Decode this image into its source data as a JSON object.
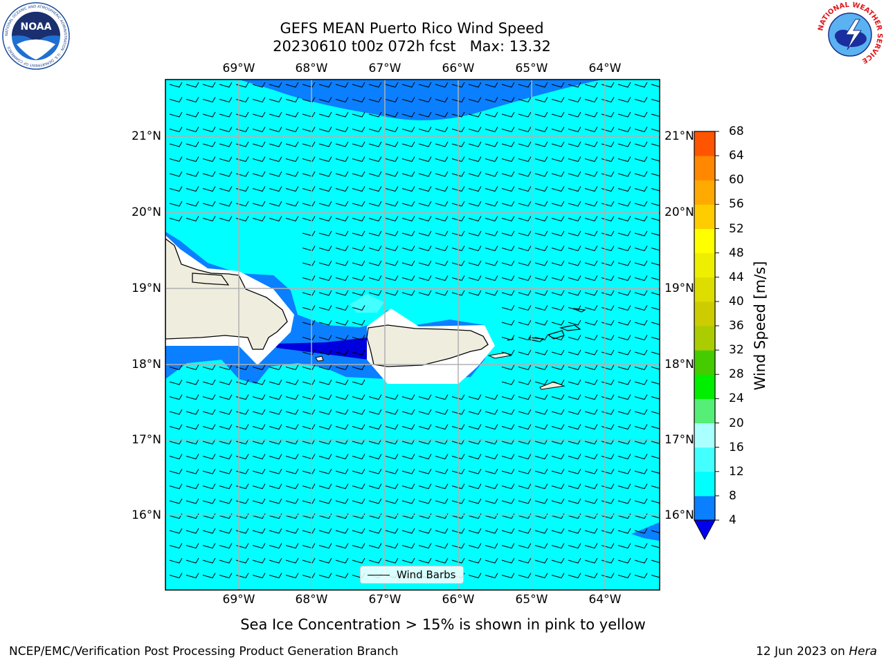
{
  "title": {
    "line1": "GEFS MEAN Puerto Rico Wind Speed",
    "line2": "20230610 t00z 072h fcst   Max: 13.32"
  },
  "map": {
    "lon_ticks": [
      "69°W",
      "68°W",
      "67°W",
      "66°W",
      "65°W",
      "64°W"
    ],
    "lat_ticks": [
      "21°N",
      "20°N",
      "19°N",
      "18°N",
      "17°N",
      "16°N"
    ],
    "ocean_color": "#00ffff",
    "land_color": "#efedde",
    "shade_colors": {
      "band_4_8": "#0a7fff",
      "band_lt4": "#0000dd",
      "band_12_16": "#33ffff"
    }
  },
  "legend": {
    "wind_barbs": "Wind Barbs"
  },
  "colorbar": {
    "label": "Wind Speed [m/s]",
    "ticks": [
      "68",
      "64",
      "60",
      "56",
      "52",
      "48",
      "44",
      "40",
      "36",
      "32",
      "28",
      "24",
      "20",
      "16",
      "12",
      "8",
      "4"
    ],
    "levels": [
      4,
      8,
      12,
      16,
      20,
      24,
      28,
      32,
      36,
      40,
      44,
      48,
      52,
      56,
      60,
      64,
      68
    ],
    "colors": [
      "#0a7fff",
      "#00ffff",
      "#44ffff",
      "#aaffff",
      "#55ee77",
      "#00ee00",
      "#44cc00",
      "#aacc00",
      "#cccc00",
      "#dddd00",
      "#eeee00",
      "#ffff00",
      "#ffcc00",
      "#ffaa00",
      "#ff8800",
      "#ff5500",
      "#ff2200",
      "#ff0000"
    ],
    "under_color": "#0000ee"
  },
  "subtitle": "Sea Ice Concentration > 15% is shown in pink to yellow",
  "footer": {
    "left": "NCEP/EMC/Verification Post Processing Product Generation Branch",
    "right_prefix": "12 Jun 2023 on ",
    "right_host": "Hera"
  },
  "logos": {
    "noaa_text": "NOAA",
    "noaa_ring": "NATIONAL OCEANIC AND ATMOSPHERIC ADMINISTRATION · U.S. DEPARTMENT OF COMMERCE",
    "nws_ring": "NATIONAL WEATHER SERVICE"
  }
}
